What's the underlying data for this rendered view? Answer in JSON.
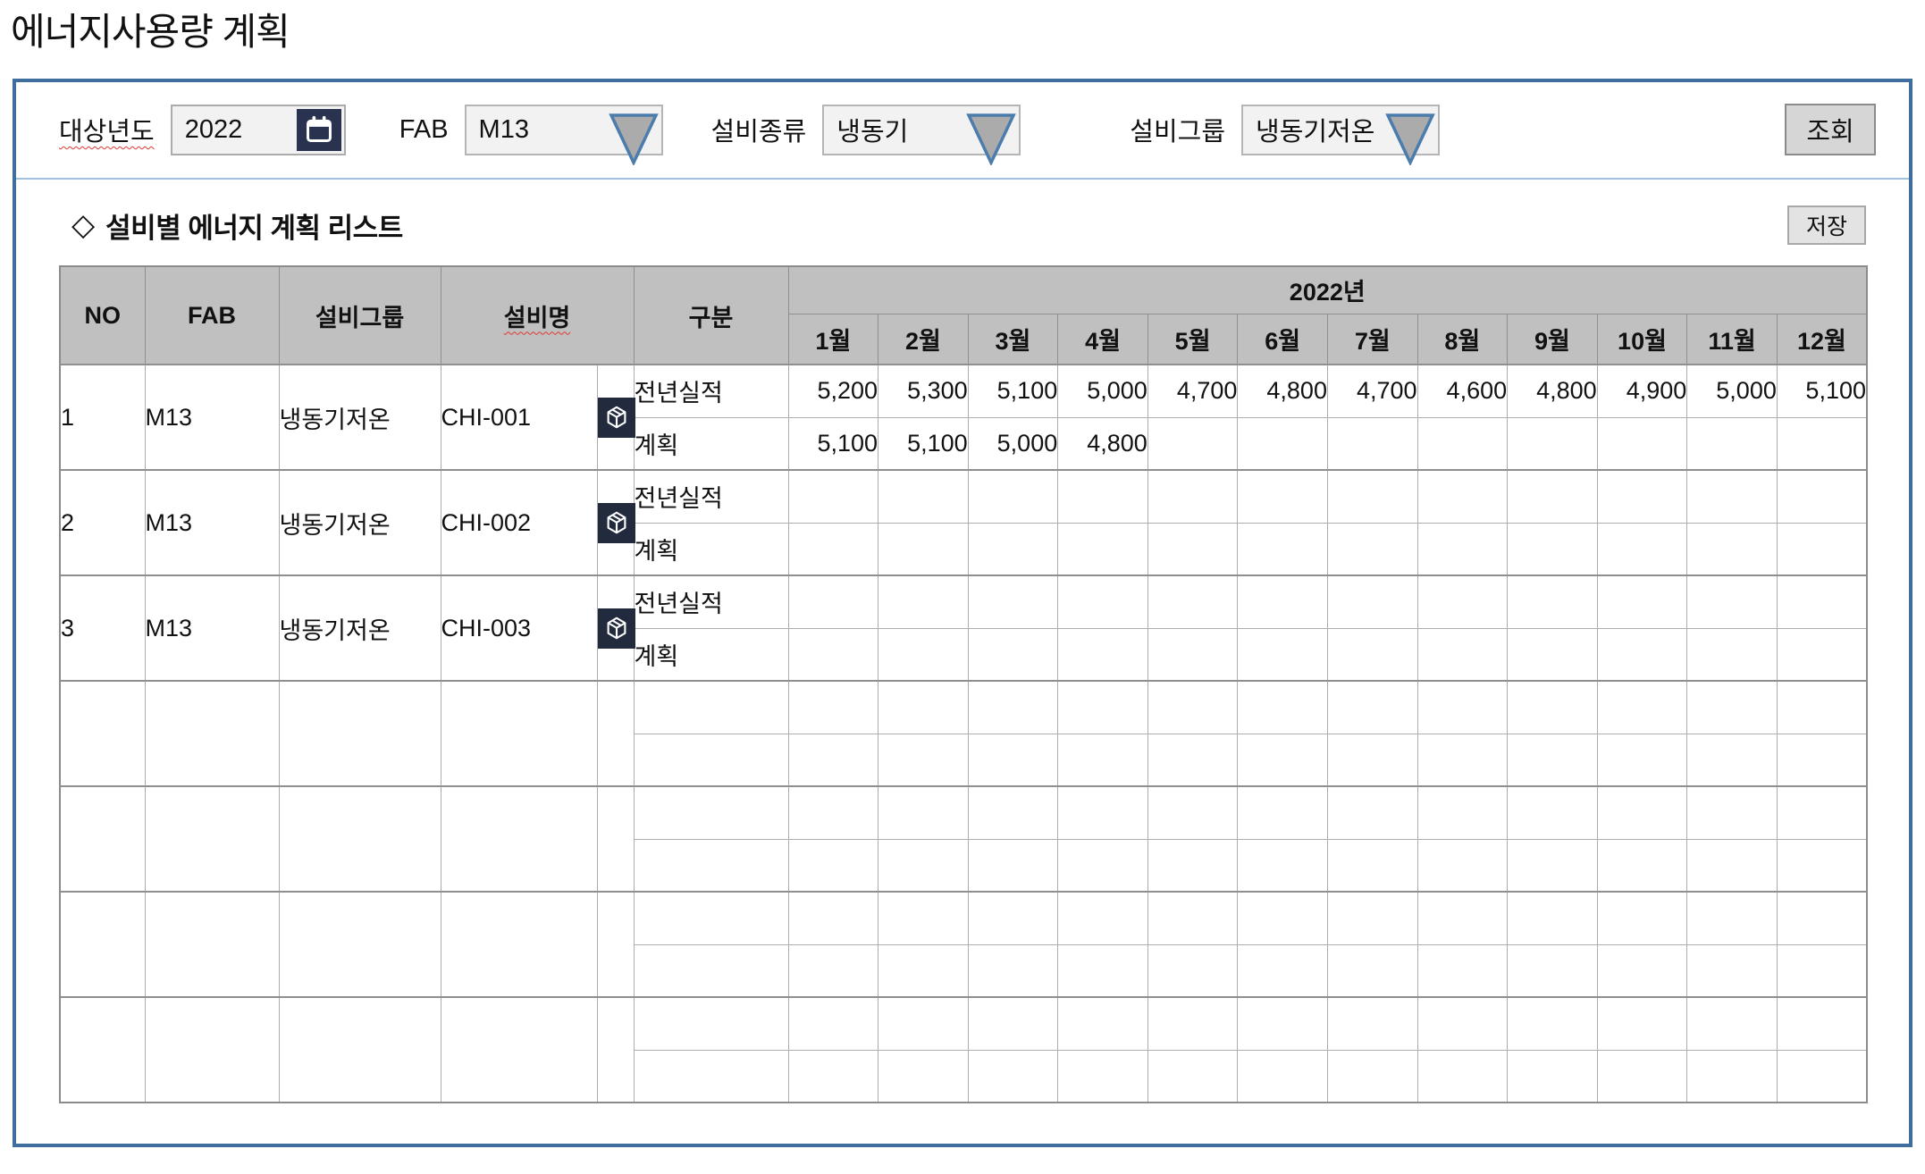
{
  "page": {
    "title": "에너지사용량 계획"
  },
  "filters": {
    "target_year": {
      "label": "대상년도",
      "value": "2022"
    },
    "fab": {
      "label": "FAB",
      "value": "M13"
    },
    "equipment_type": {
      "label": "설비종류",
      "value": "냉동기"
    },
    "equipment_group": {
      "label": "설비그룹",
      "value": "냉동기저온"
    },
    "search_button": "조회"
  },
  "section": {
    "diamond": "◇",
    "title": "설비별 에너지 계획 리스트",
    "save_button": "저장"
  },
  "table": {
    "headers": {
      "no": "NO",
      "fab": "FAB",
      "group": "설비그룹",
      "name": "설비명",
      "category": "구분",
      "year": "2022년",
      "months": [
        "1월",
        "2월",
        "3월",
        "4월",
        "5월",
        "6월",
        "7월",
        "8월",
        "9월",
        "10월",
        "11월",
        "12월"
      ]
    },
    "groups": [
      {
        "no": "1",
        "fab": "M13",
        "group": "냉동기저온",
        "name": "CHI-001",
        "has_icon": true,
        "rows": [
          {
            "label": "전년실적",
            "values": [
              "5,200",
              "5,300",
              "5,100",
              "5,000",
              "4,700",
              "4,800",
              "4,700",
              "4,600",
              "4,800",
              "4,900",
              "5,000",
              "5,100"
            ]
          },
          {
            "label": "계획",
            "values": [
              "5,100",
              "5,100",
              "5,000",
              "4,800",
              "",
              "",
              "",
              "",
              "",
              "",
              "",
              ""
            ]
          }
        ]
      },
      {
        "no": "2",
        "fab": "M13",
        "group": "냉동기저온",
        "name": "CHI-002",
        "has_icon": true,
        "rows": [
          {
            "label": "전년실적",
            "values": [
              "",
              "",
              "",
              "",
              "",
              "",
              "",
              "",
              "",
              "",
              "",
              ""
            ]
          },
          {
            "label": "계획",
            "values": [
              "",
              "",
              "",
              "",
              "",
              "",
              "",
              "",
              "",
              "",
              "",
              ""
            ]
          }
        ]
      },
      {
        "no": "3",
        "fab": "M13",
        "group": "냉동기저온",
        "name": "CHI-003",
        "has_icon": true,
        "rows": [
          {
            "label": "전년실적",
            "values": [
              "",
              "",
              "",
              "",
              "",
              "",
              "",
              "",
              "",
              "",
              "",
              ""
            ]
          },
          {
            "label": "계획",
            "values": [
              "",
              "",
              "",
              "",
              "",
              "",
              "",
              "",
              "",
              "",
              "",
              ""
            ]
          }
        ]
      },
      {
        "no": "",
        "fab": "",
        "group": "",
        "name": "",
        "has_icon": false,
        "rows": [
          {
            "label": "",
            "values": [
              "",
              "",
              "",
              "",
              "",
              "",
              "",
              "",
              "",
              "",
              "",
              ""
            ]
          },
          {
            "label": "",
            "values": [
              "",
              "",
              "",
              "",
              "",
              "",
              "",
              "",
              "",
              "",
              "",
              ""
            ]
          }
        ]
      },
      {
        "no": "",
        "fab": "",
        "group": "",
        "name": "",
        "has_icon": false,
        "rows": [
          {
            "label": "",
            "values": [
              "",
              "",
              "",
              "",
              "",
              "",
              "",
              "",
              "",
              "",
              "",
              ""
            ]
          },
          {
            "label": "",
            "values": [
              "",
              "",
              "",
              "",
              "",
              "",
              "",
              "",
              "",
              "",
              "",
              ""
            ]
          }
        ]
      },
      {
        "no": "",
        "fab": "",
        "group": "",
        "name": "",
        "has_icon": false,
        "rows": [
          {
            "label": "",
            "values": [
              "",
              "",
              "",
              "",
              "",
              "",
              "",
              "",
              "",
              "",
              "",
              ""
            ]
          },
          {
            "label": "",
            "values": [
              "",
              "",
              "",
              "",
              "",
              "",
              "",
              "",
              "",
              "",
              "",
              ""
            ]
          }
        ]
      },
      {
        "no": "",
        "fab": "",
        "group": "",
        "name": "",
        "has_icon": false,
        "rows": [
          {
            "label": "",
            "values": [
              "",
              "",
              "",
              "",
              "",
              "",
              "",
              "",
              "",
              "",
              "",
              ""
            ]
          },
          {
            "label": "",
            "values": [
              "",
              "",
              "",
              "",
              "",
              "",
              "",
              "",
              "",
              "",
              "",
              ""
            ]
          }
        ]
      }
    ]
  },
  "colors": {
    "panel_border": "#3d6e9e",
    "divider_blue": "#9cc2e5",
    "header_gray": "#c0c0c0",
    "icon_navy": "#222b3e",
    "arrow_gray": "#ababab",
    "arrow_blue": "#4a7dad",
    "squiggle_red": "#e0392f"
  }
}
